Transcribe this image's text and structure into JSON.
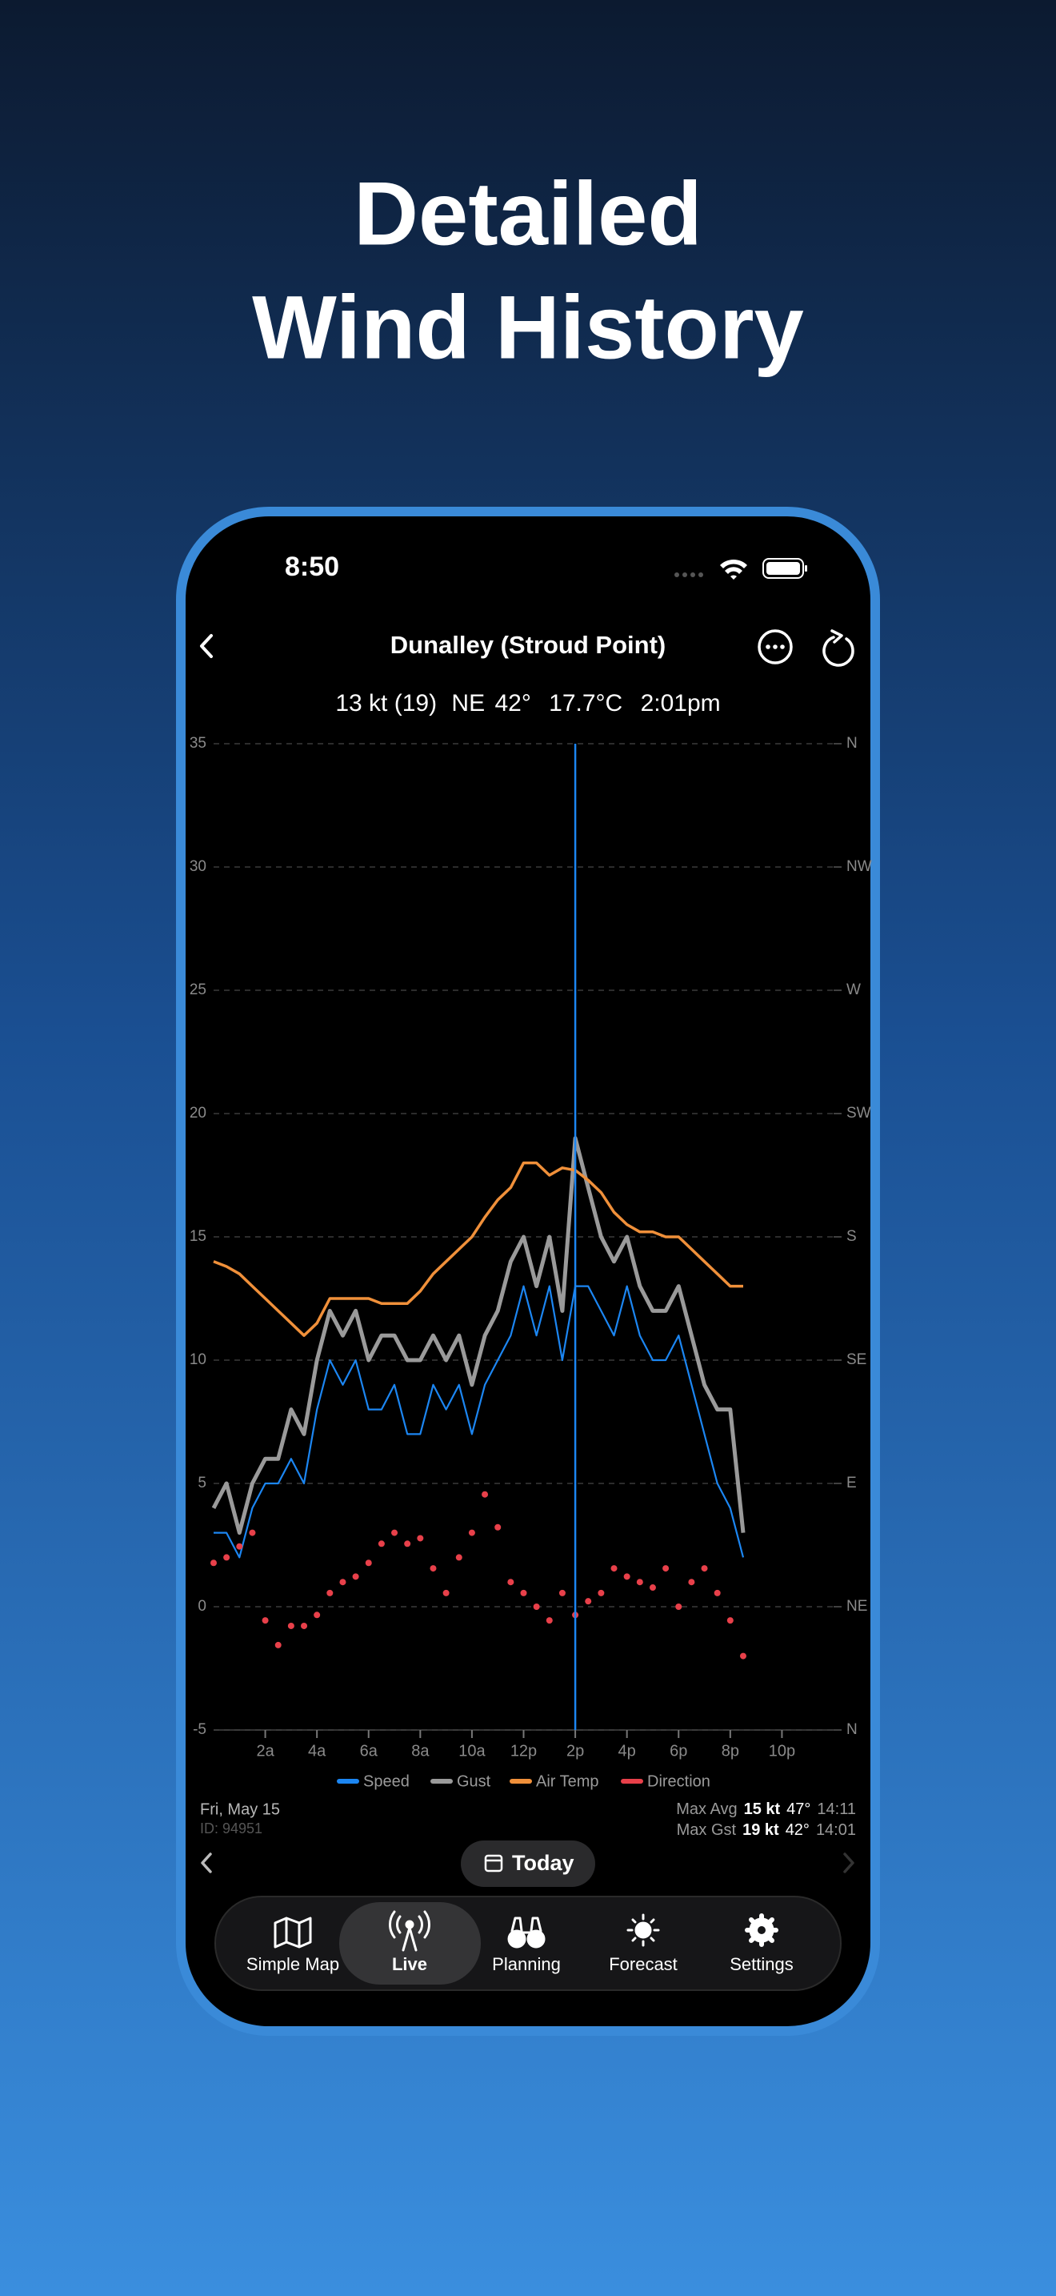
{
  "status_bar": {
    "time": "8:50"
  },
  "headline": [
    "Detailed",
    "Wind History"
  ],
  "header": {
    "title": "Dunalley (Stroud Point)"
  },
  "current": [
    "13 kt (19)",
    "NE",
    "42°",
    "17.7°C",
    "2:01pm"
  ],
  "chart_data": {
    "type": "line",
    "x": [
      0,
      0.5,
      1,
      1.5,
      2,
      2.5,
      3,
      3.5,
      4,
      4.5,
      5,
      5.5,
      6,
      6.5,
      7,
      7.5,
      8,
      8.5,
      9,
      9.5,
      10,
      10.5,
      11,
      11.5,
      12,
      12.5,
      13,
      13.5,
      14,
      14.5,
      15,
      15.5,
      16,
      16.5,
      17,
      17.5,
      18,
      18.5,
      19,
      19.5,
      20,
      20.5
    ],
    "xlim": [
      0,
      24
    ],
    "xticks": [
      {
        "value": 2,
        "label": "2a"
      },
      {
        "value": 4,
        "label": "4a"
      },
      {
        "value": 6,
        "label": "6a"
      },
      {
        "value": 8,
        "label": "8a"
      },
      {
        "value": 10,
        "label": "10a"
      },
      {
        "value": 12,
        "label": "12p"
      },
      {
        "value": 14,
        "label": "2p"
      },
      {
        "value": 16,
        "label": "4p"
      },
      {
        "value": 18,
        "label": "6p"
      },
      {
        "value": 20,
        "label": "8p"
      },
      {
        "value": 22,
        "label": "10p"
      }
    ],
    "ylim": [
      -5,
      35
    ],
    "yticks": [
      -5,
      0,
      5,
      10,
      15,
      20,
      25,
      30,
      35
    ],
    "y2lim": [
      0,
      360
    ],
    "y2ticks": [
      {
        "value": 0,
        "label": "N"
      },
      {
        "value": 45,
        "label": "NE"
      },
      {
        "value": 90,
        "label": "E"
      },
      {
        "value": 135,
        "label": "SE"
      },
      {
        "value": 180,
        "label": "S"
      },
      {
        "value": 225,
        "label": "SW"
      },
      {
        "value": 270,
        "label": "W"
      },
      {
        "value": 315,
        "label": "NW"
      },
      {
        "value": 360,
        "label": "N"
      }
    ],
    "grid": true,
    "cursor": 14,
    "series": [
      {
        "name": "Speed",
        "color": "#1c86f2",
        "values": [
          3,
          3,
          2,
          4,
          5,
          5,
          6,
          5,
          8,
          10,
          9,
          10,
          8,
          8,
          9,
          7,
          7,
          9,
          8,
          9,
          7,
          9,
          10,
          11,
          13,
          11,
          13,
          10,
          13,
          13,
          12,
          11,
          13,
          11,
          10,
          10,
          11,
          9,
          7,
          5,
          4,
          2
        ]
      },
      {
        "name": "Gust",
        "color": "#9a9a9a",
        "values": [
          4,
          5,
          3,
          5,
          6,
          6,
          8,
          7,
          10,
          12,
          11,
          12,
          10,
          11,
          11,
          10,
          10,
          11,
          10,
          11,
          9,
          11,
          12,
          14,
          15,
          13,
          15,
          12,
          19,
          17,
          15,
          14,
          15,
          13,
          12,
          12,
          13,
          11,
          9,
          8,
          8,
          3
        ]
      },
      {
        "name": "Air Temp",
        "color": "#f0903a",
        "values": [
          14,
          13.8,
          13.5,
          13,
          12.5,
          12,
          11.5,
          11,
          11.5,
          12.5,
          12.5,
          12.5,
          12.5,
          12.3,
          12.3,
          12.3,
          12.8,
          13.5,
          14,
          14.5,
          15,
          15.8,
          16.5,
          17,
          18,
          18,
          17.5,
          17.8,
          17.7,
          17.3,
          16.8,
          16,
          15.5,
          15.2,
          15.2,
          15,
          15,
          14.5,
          14,
          13.5,
          13,
          13
        ]
      },
      {
        "name": "Direction",
        "color": "#e8404a",
        "axis": "y2",
        "style": "dots",
        "values": [
          61,
          63,
          67,
          72,
          40,
          31,
          38,
          38,
          42,
          50,
          54,
          56,
          61,
          68,
          72,
          68,
          70,
          59,
          50,
          63,
          72,
          86,
          74,
          54,
          50,
          45,
          40,
          50,
          42,
          47,
          50,
          59,
          56,
          54,
          52,
          59,
          45,
          54,
          59,
          50,
          40,
          27
        ]
      }
    ]
  },
  "footer": {
    "date": "Fri, May 15",
    "id": "ID: 94951",
    "max_avg": {
      "label": "Max Avg",
      "speed": "15 kt",
      "dir": "47°",
      "time": "14:11"
    },
    "max_gust": {
      "label": "Max Gst",
      "speed": "19 kt",
      "dir": "42°",
      "time": "14:01"
    }
  },
  "nav": {
    "today": "Today"
  },
  "tabs": [
    "Simple Map",
    "Live",
    "Planning",
    "Forecast",
    "Settings"
  ]
}
